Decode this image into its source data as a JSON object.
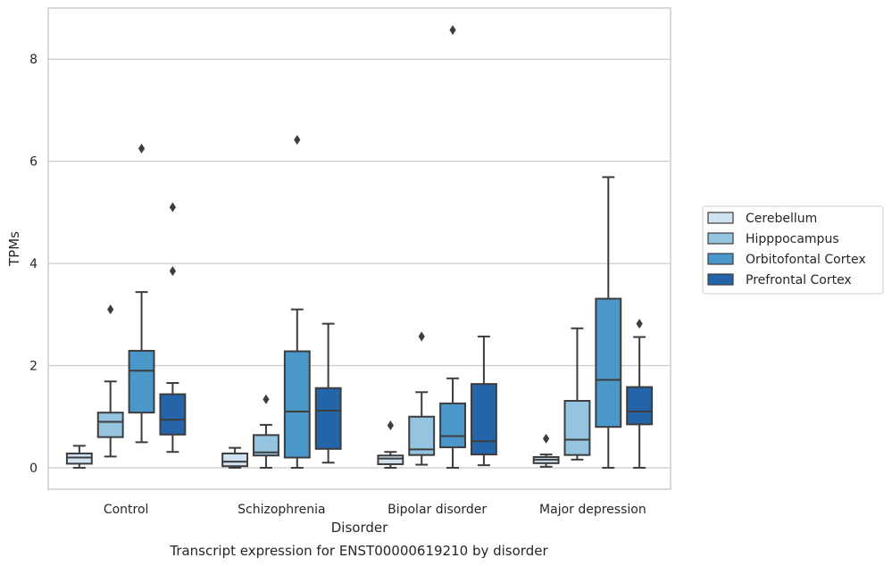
{
  "chart_data": {
    "type": "box",
    "title": "",
    "caption": "Transcript expression for ENST00000619210 by disorder",
    "xlabel": "Disorder",
    "ylabel": "TPMs",
    "ylim": [
      -0.42,
      9.0
    ],
    "yticks": [
      0,
      2,
      4,
      6,
      8
    ],
    "grid": "y",
    "legend_position": "right",
    "categories": [
      "Control",
      "Schizophrenia",
      "Bipolar disorder",
      "Major depression"
    ],
    "series": [
      {
        "name": "Cerebellum",
        "color": "#d0e1f2",
        "boxes": [
          {
            "whisker_low": 0.0,
            "q1": 0.08,
            "median": 0.2,
            "q3": 0.28,
            "whisker_high": 0.43,
            "outliers": []
          },
          {
            "whisker_low": 0.0,
            "q1": 0.03,
            "median": 0.12,
            "q3": 0.28,
            "whisker_high": 0.39,
            "outliers": []
          },
          {
            "whisker_low": 0.0,
            "q1": 0.07,
            "median": 0.18,
            "q3": 0.24,
            "whisker_high": 0.31,
            "outliers": [
              0.83
            ]
          },
          {
            "whisker_low": 0.02,
            "q1": 0.09,
            "median": 0.16,
            "q3": 0.21,
            "whisker_high": 0.26,
            "outliers": [
              0.57
            ]
          }
        ]
      },
      {
        "name": "Hipppocampus",
        "color": "#94c4df",
        "boxes": [
          {
            "whisker_low": 0.22,
            "q1": 0.6,
            "median": 0.9,
            "q3": 1.08,
            "whisker_high": 1.69,
            "outliers": [
              3.1
            ]
          },
          {
            "whisker_low": 0.0,
            "q1": 0.24,
            "median": 0.3,
            "q3": 0.64,
            "whisker_high": 0.84,
            "outliers": [
              1.34
            ]
          },
          {
            "whisker_low": 0.06,
            "q1": 0.25,
            "median": 0.36,
            "q3": 1.0,
            "whisker_high": 1.48,
            "outliers": [
              2.57
            ]
          },
          {
            "whisker_low": 0.16,
            "q1": 0.25,
            "median": 0.55,
            "q3": 1.31,
            "whisker_high": 2.73,
            "outliers": []
          }
        ]
      },
      {
        "name": "Orbitofontal Cortex",
        "color": "#4a98c9",
        "boxes": [
          {
            "whisker_low": 0.5,
            "q1": 1.08,
            "median": 1.9,
            "q3": 2.29,
            "whisker_high": 3.44,
            "outliers": [
              6.25
            ]
          },
          {
            "whisker_low": 0.0,
            "q1": 0.2,
            "median": 1.1,
            "q3": 2.28,
            "whisker_high": 3.1,
            "outliers": [
              6.42
            ]
          },
          {
            "whisker_low": 0.0,
            "q1": 0.4,
            "median": 0.62,
            "q3": 1.26,
            "whisker_high": 1.75,
            "outliers": [
              8.57
            ]
          },
          {
            "whisker_low": 0.0,
            "q1": 0.8,
            "median": 1.72,
            "q3": 3.31,
            "whisker_high": 5.69,
            "outliers": []
          }
        ]
      },
      {
        "name": "Prefrontal Cortex",
        "color": "#2464a8",
        "boxes": [
          {
            "whisker_low": 0.31,
            "q1": 0.65,
            "median": 0.94,
            "q3": 1.44,
            "whisker_high": 1.66,
            "outliers": [
              3.85,
              5.1
            ]
          },
          {
            "whisker_low": 0.1,
            "q1": 0.37,
            "median": 1.12,
            "q3": 1.56,
            "whisker_high": 2.82,
            "outliers": []
          },
          {
            "whisker_low": 0.05,
            "q1": 0.26,
            "median": 0.52,
            "q3": 1.64,
            "whisker_high": 2.57,
            "outliers": []
          },
          {
            "whisker_low": 0.0,
            "q1": 0.85,
            "median": 1.1,
            "q3": 1.58,
            "whisker_high": 2.56,
            "outliers": [
              2.82
            ]
          }
        ]
      }
    ]
  }
}
